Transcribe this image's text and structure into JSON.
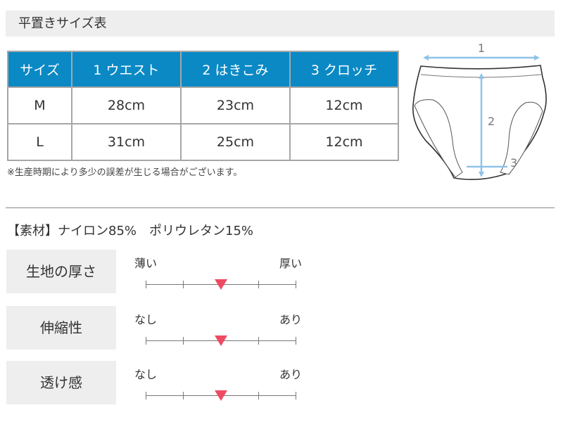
{
  "header": {
    "title": "平置きサイズ表"
  },
  "size_table": {
    "columns": [
      "サイズ",
      "1 ウエスト",
      "2 はきこみ",
      "3 クロッチ"
    ],
    "rows": [
      [
        "M",
        "28cm",
        "23cm",
        "12cm"
      ],
      [
        "L",
        "31cm",
        "25cm",
        "12cm"
      ]
    ],
    "header_color": "#0a89c5"
  },
  "note": "※生産時期により多少の誤差が生じる場合がございます。",
  "diagram": {
    "labels": [
      "1",
      "2",
      "3"
    ],
    "arrow_color": "#8ec3e8"
  },
  "material": "【素材】ナイロン85%　ポリウレタン15%",
  "ratings": [
    {
      "label": "生地の厚さ",
      "low": "薄い",
      "high": "厚い",
      "level": 3,
      "max": 5
    },
    {
      "label": "伸縮性",
      "low": "なし",
      "high": "あり",
      "level": 3,
      "max": 5
    },
    {
      "label": "透け感",
      "low": "なし",
      "high": "あり",
      "level": 3,
      "max": 5
    }
  ],
  "marker_color": "#ee4b63"
}
